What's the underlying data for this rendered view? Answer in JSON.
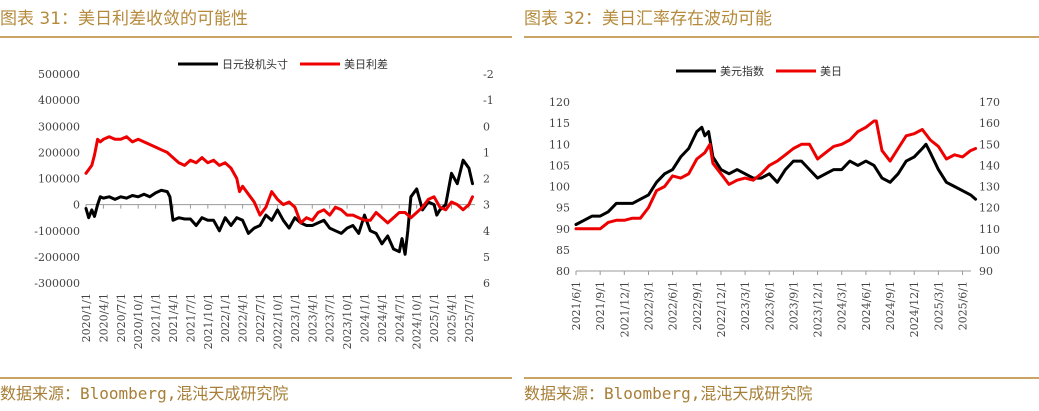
{
  "left": {
    "title": "图表 31：美日利差收敛的可能性",
    "source": "数据来源：Bloomberg,混沌天成研究院",
    "colors": {
      "s1": "#000000",
      "s2": "#ee0000"
    },
    "chart_data": {
      "type": "line",
      "title": "图表 31：美日利差收敛的可能性",
      "legend": "top-center",
      "grid": false,
      "x_ticks": [
        "2020/1/1",
        "2020/4/1",
        "2020/7/1",
        "2020/10/1",
        "2021/1/1",
        "2021/4/1",
        "2021/7/1",
        "2021/10/1",
        "2022/1/1",
        "2022/4/1",
        "2022/7/1",
        "2022/10/1",
        "2023/1/1",
        "2023/4/1",
        "2023/7/1",
        "2023/10/1",
        "2024/1/1",
        "2024/4/1",
        "2024/7/1",
        "2024/10/1",
        "2025/1/1",
        "2025/4/1",
        "2025/7/1"
      ],
      "y_left": {
        "ticks": [
          "500000",
          "400000",
          "300000",
          "200000",
          "100000",
          "0",
          "-100000",
          "-200000",
          "-300000"
        ],
        "range": [
          -300000,
          500000
        ]
      },
      "y_right": {
        "ticks": [
          "-2",
          "-1",
          "0",
          "1",
          "2",
          "3",
          "4",
          "5",
          "6"
        ],
        "range": [
          -2,
          6
        ],
        "inverted": true
      },
      "series": [
        {
          "name": "日元投机头寸",
          "axis": "left",
          "x": [
            "2020/1/1",
            "2020/1/15",
            "2020/2/1",
            "2020/2/15",
            "2020/3/1",
            "2020/3/15",
            "2020/4/1",
            "2020/5/1",
            "2020/6/1",
            "2020/7/1",
            "2020/8/1",
            "2020/9/1",
            "2020/10/1",
            "2020/11/1",
            "2020/12/1",
            "2021/1/1",
            "2021/2/1",
            "2021/3/1",
            "2021/3/15",
            "2021/4/1",
            "2021/5/1",
            "2021/6/1",
            "2021/7/1",
            "2021/8/1",
            "2021/9/1",
            "2021/10/1",
            "2021/11/1",
            "2021/12/1",
            "2022/1/1",
            "2022/2/1",
            "2022/3/1",
            "2022/4/1",
            "2022/5/1",
            "2022/6/1",
            "2022/7/1",
            "2022/8/1",
            "2022/9/1",
            "2022/10/1",
            "2022/11/1",
            "2022/12/1",
            "2023/1/1",
            "2023/2/1",
            "2023/3/1",
            "2023/4/1",
            "2023/5/1",
            "2023/6/1",
            "2023/7/1",
            "2023/8/1",
            "2023/9/1",
            "2023/10/1",
            "2023/11/1",
            "2023/12/1",
            "2024/1/1",
            "2024/2/1",
            "2024/3/1",
            "2024/4/1",
            "2024/5/1",
            "2024/6/1",
            "2024/7/1",
            "2024/7/15",
            "2024/8/1",
            "2024/8/15",
            "2024/9/1",
            "2024/10/1",
            "2024/11/1",
            "2024/12/1",
            "2025/1/1",
            "2025/1/15",
            "2025/2/1",
            "2025/3/1",
            "2025/4/1",
            "2025/5/1",
            "2025/6/1",
            "2025/7/1",
            "2025/7/20"
          ],
          "values": [
            -15000,
            -50000,
            -20000,
            -45000,
            0,
            30000,
            25000,
            30000,
            20000,
            30000,
            25000,
            35000,
            30000,
            40000,
            30000,
            45000,
            55000,
            50000,
            30000,
            -60000,
            -50000,
            -55000,
            -55000,
            -80000,
            -50000,
            -60000,
            -60000,
            -100000,
            -50000,
            -80000,
            -50000,
            -60000,
            -110000,
            -90000,
            -80000,
            -40000,
            -60000,
            -20000,
            -60000,
            -90000,
            -50000,
            -70000,
            -80000,
            -80000,
            -70000,
            -60000,
            -90000,
            -100000,
            -110000,
            -90000,
            -80000,
            -110000,
            -40000,
            -100000,
            -110000,
            -150000,
            -120000,
            -170000,
            -180000,
            -130000,
            -190000,
            -100000,
            30000,
            60000,
            -20000,
            10000,
            0,
            -40000,
            -20000,
            0,
            120000,
            80000,
            170000,
            140000,
            80000
          ]
        },
        {
          "name": "美日利差",
          "axis": "right",
          "x": [
            "2020/1/1",
            "2020/2/1",
            "2020/2/15",
            "2020/3/1",
            "2020/3/15",
            "2020/4/1",
            "2020/5/1",
            "2020/6/1",
            "2020/7/1",
            "2020/8/1",
            "2020/9/1",
            "2020/10/1",
            "2020/11/1",
            "2020/12/1",
            "2021/1/1",
            "2021/2/1",
            "2021/3/1",
            "2021/4/1",
            "2021/5/1",
            "2021/6/1",
            "2021/7/1",
            "2021/8/1",
            "2021/9/1",
            "2021/10/1",
            "2021/11/1",
            "2021/12/1",
            "2022/1/1",
            "2022/2/1",
            "2022/3/1",
            "2022/3/15",
            "2022/4/1",
            "2022/5/1",
            "2022/6/1",
            "2022/7/1",
            "2022/8/1",
            "2022/9/1",
            "2022/10/1",
            "2022/11/1",
            "2022/12/1",
            "2023/1/1",
            "2023/2/1",
            "2023/3/1",
            "2023/4/1",
            "2023/5/1",
            "2023/6/1",
            "2023/7/1",
            "2023/8/1",
            "2023/9/1",
            "2023/10/1",
            "2023/11/1",
            "2023/12/1",
            "2024/1/1",
            "2024/2/1",
            "2024/3/1",
            "2024/4/1",
            "2024/5/1",
            "2024/6/1",
            "2024/7/1",
            "2024/8/1",
            "2024/9/1",
            "2024/10/1",
            "2024/11/1",
            "2024/12/1",
            "2025/1/1",
            "2025/2/1",
            "2025/3/1",
            "2025/4/1",
            "2025/5/1",
            "2025/6/1",
            "2025/7/1",
            "2025/7/20"
          ],
          "values": [
            1.8,
            1.5,
            1.1,
            0.5,
            0.6,
            0.5,
            0.4,
            0.5,
            0.5,
            0.4,
            0.6,
            0.5,
            0.6,
            0.7,
            0.8,
            0.9,
            1.0,
            1.2,
            1.4,
            1.5,
            1.3,
            1.4,
            1.2,
            1.4,
            1.3,
            1.5,
            1.4,
            1.6,
            2.0,
            2.5,
            2.3,
            2.6,
            2.9,
            3.4,
            3.1,
            2.5,
            2.8,
            3.0,
            2.9,
            3.1,
            3.7,
            3.5,
            3.6,
            3.3,
            3.2,
            3.4,
            3.1,
            3.2,
            3.4,
            3.4,
            3.5,
            3.6,
            3.6,
            3.3,
            3.5,
            3.7,
            3.5,
            3.3,
            3.3,
            3.5,
            3.3,
            3.1,
            2.8,
            2.7,
            3.1,
            3.2,
            2.9,
            3.0,
            3.2,
            3.0,
            2.7
          ]
        }
      ]
    }
  },
  "right": {
    "title": "图表 32：美日汇率存在波动可能",
    "source": "数据来源：Bloomberg,混沌天成研究院",
    "colors": {
      "s1": "#000000",
      "s2": "#ee0000"
    },
    "chart_data": {
      "type": "line",
      "title": "图表 32：美日汇率存在波动可能",
      "legend": "top-center",
      "grid": false,
      "x_ticks": [
        "2021/6/1",
        "2021/9/1",
        "2021/12/1",
        "2022/3/1",
        "2022/6/1",
        "2022/9/1",
        "2022/12/1",
        "2023/3/1",
        "2023/6/1",
        "2023/9/1",
        "2023/12/1",
        "2024/3/1",
        "2024/6/1",
        "2024/9/1",
        "2024/12/1",
        "2025/3/1",
        "2025/6/1"
      ],
      "y_left": {
        "ticks": [
          "120",
          "115",
          "110",
          "105",
          "100",
          "95",
          "90",
          "85",
          "80"
        ],
        "range": [
          80,
          120
        ]
      },
      "y_right": {
        "ticks": [
          "170",
          "160",
          "150",
          "140",
          "130",
          "120",
          "110",
          "100",
          "90"
        ],
        "range": [
          90,
          170
        ]
      },
      "series": [
        {
          "name": "美元指数",
          "axis": "left",
          "x": [
            "2021/6/1",
            "2021/7/1",
            "2021/8/1",
            "2021/9/1",
            "2021/10/1",
            "2021/11/1",
            "2021/12/1",
            "2022/1/1",
            "2022/2/1",
            "2022/3/1",
            "2022/4/1",
            "2022/5/1",
            "2022/6/1",
            "2022/7/1",
            "2022/8/1",
            "2022/9/1",
            "2022/9/20",
            "2022/10/1",
            "2022/10/15",
            "2022/11/1",
            "2022/12/1",
            "2023/1/1",
            "2023/2/1",
            "2023/3/1",
            "2023/4/1",
            "2023/5/1",
            "2023/6/1",
            "2023/7/1",
            "2023/8/1",
            "2023/9/1",
            "2023/10/1",
            "2023/11/1",
            "2023/12/1",
            "2024/1/1",
            "2024/2/1",
            "2024/3/1",
            "2024/4/1",
            "2024/5/1",
            "2024/6/1",
            "2024/7/1",
            "2024/8/1",
            "2024/9/1",
            "2024/10/1",
            "2024/11/1",
            "2024/12/1",
            "2025/1/1",
            "2025/1/15",
            "2025/2/1",
            "2025/3/1",
            "2025/4/1",
            "2025/5/1",
            "2025/6/1",
            "2025/7/1",
            "2025/7/20"
          ],
          "values": [
            91,
            92,
            93,
            93,
            94,
            96,
            96,
            96,
            97,
            98,
            101,
            103,
            104,
            107,
            109,
            113,
            114,
            112,
            113,
            107,
            104,
            103,
            104,
            103,
            102,
            102,
            103,
            101,
            104,
            106,
            106,
            104,
            102,
            103,
            104,
            104,
            106,
            105,
            106,
            105,
            102,
            101,
            103,
            106,
            107,
            109,
            110,
            108,
            104,
            101,
            100,
            99,
            98,
            97
          ]
        },
        {
          "name": "美日",
          "axis": "right",
          "x": [
            "2021/6/1",
            "2021/7/1",
            "2021/8/1",
            "2021/9/1",
            "2021/10/1",
            "2021/11/1",
            "2021/12/1",
            "2022/1/1",
            "2022/2/1",
            "2022/3/1",
            "2022/4/1",
            "2022/5/1",
            "2022/6/1",
            "2022/7/1",
            "2022/8/1",
            "2022/9/1",
            "2022/10/1",
            "2022/10/20",
            "2022/11/1",
            "2022/12/1",
            "2023/1/1",
            "2023/2/1",
            "2023/3/1",
            "2023/4/1",
            "2023/5/1",
            "2023/6/1",
            "2023/7/1",
            "2023/8/1",
            "2023/9/1",
            "2023/10/1",
            "2023/11/1",
            "2023/12/1",
            "2024/1/1",
            "2024/2/1",
            "2024/3/1",
            "2024/4/1",
            "2024/5/1",
            "2024/6/1",
            "2024/7/1",
            "2024/7/10",
            "2024/8/1",
            "2024/9/1",
            "2024/10/1",
            "2024/11/1",
            "2024/12/1",
            "2025/1/1",
            "2025/2/1",
            "2025/3/1",
            "2025/4/1",
            "2025/5/1",
            "2025/6/1",
            "2025/7/1",
            "2025/7/20"
          ],
          "values": [
            110,
            110,
            110,
            110,
            113,
            114,
            114,
            115,
            115,
            120,
            128,
            130,
            135,
            134,
            136,
            143,
            146,
            150,
            141,
            136,
            131,
            133,
            134,
            133,
            136,
            140,
            142,
            145,
            148,
            150,
            150,
            143,
            146,
            149,
            150,
            152,
            156,
            158,
            161,
            161,
            147,
            142,
            148,
            154,
            155,
            157,
            152,
            149,
            143,
            145,
            144,
            147,
            148
          ]
        }
      ]
    }
  }
}
